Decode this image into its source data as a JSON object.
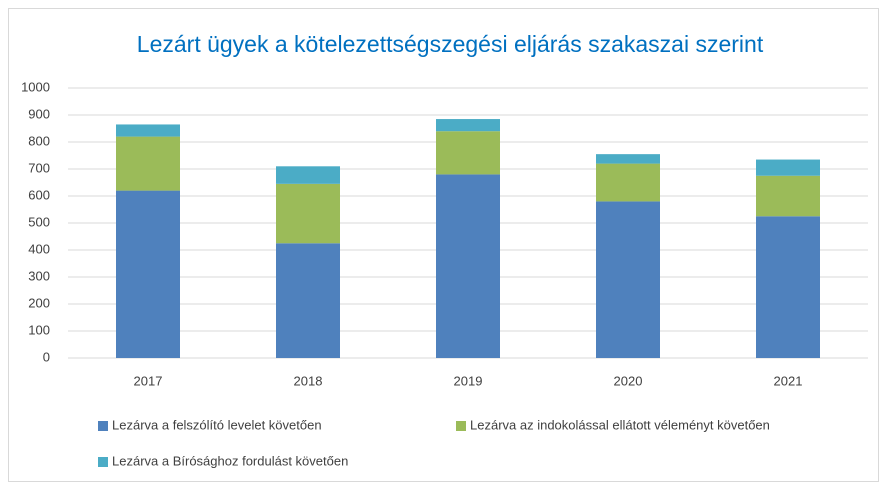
{
  "chart_data": {
    "type": "stacked_bar",
    "title": "Lezárt ügyek a kötelezettségszegési eljárás szakaszai szerint",
    "categories": [
      "2017",
      "2018",
      "2019",
      "2020",
      "2021"
    ],
    "series": [
      {
        "name": "Lezárva a felszólító levelet követően",
        "color": "#4f81bd",
        "values": [
          620,
          425,
          680,
          580,
          525
        ]
      },
      {
        "name": "Lezárva az indokolással ellátott véleményt követően",
        "color": "#9bbb59",
        "values": [
          200,
          220,
          160,
          140,
          150
        ]
      },
      {
        "name": "Lezárva a Bírósághoz fordulást követően",
        "color": "#4bacc6",
        "values": [
          45,
          65,
          45,
          35,
          60
        ]
      }
    ],
    "ylim": [
      0,
      1000
    ],
    "yticks": [
      0,
      100,
      200,
      300,
      400,
      500,
      600,
      700,
      800,
      900,
      1000
    ],
    "grid": true,
    "legend": "bottom"
  }
}
